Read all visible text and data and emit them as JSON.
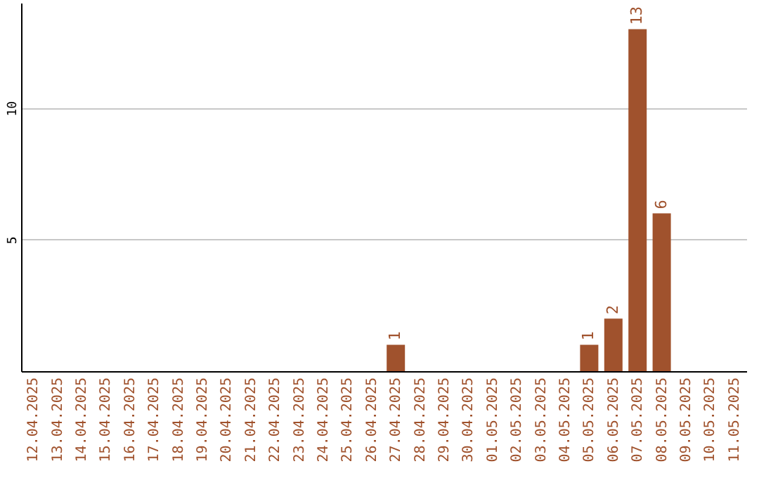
{
  "chart_data": {
    "type": "bar",
    "categories": [
      "12.04.2025",
      "13.04.2025",
      "14.04.2025",
      "15.04.2025",
      "16.04.2025",
      "17.04.2025",
      "18.04.2025",
      "19.04.2025",
      "20.04.2025",
      "21.04.2025",
      "22.04.2025",
      "23.04.2025",
      "24.04.2025",
      "25.04.2025",
      "26.04.2025",
      "27.04.2025",
      "28.04.2025",
      "29.04.2025",
      "30.04.2025",
      "01.05.2025",
      "02.05.2025",
      "03.05.2025",
      "04.05.2025",
      "05.05.2025",
      "06.05.2025",
      "07.05.2025",
      "08.05.2025",
      "09.05.2025",
      "10.05.2025",
      "11.05.2025"
    ],
    "values": [
      0,
      0,
      0,
      0,
      0,
      0,
      0,
      0,
      0,
      0,
      0,
      0,
      0,
      0,
      0,
      1,
      0,
      0,
      0,
      0,
      0,
      0,
      0,
      1,
      2,
      13,
      6,
      0,
      0,
      0
    ],
    "value_labels": [
      null,
      null,
      null,
      null,
      null,
      null,
      null,
      null,
      null,
      null,
      null,
      null,
      null,
      null,
      null,
      "1",
      null,
      null,
      null,
      null,
      null,
      null,
      null,
      "1",
      "2",
      "13",
      "6",
      null,
      null,
      null
    ],
    "color": "#a0522d",
    "ylim": [
      0,
      14
    ],
    "yticks": [
      5,
      10
    ],
    "grid": "y"
  }
}
